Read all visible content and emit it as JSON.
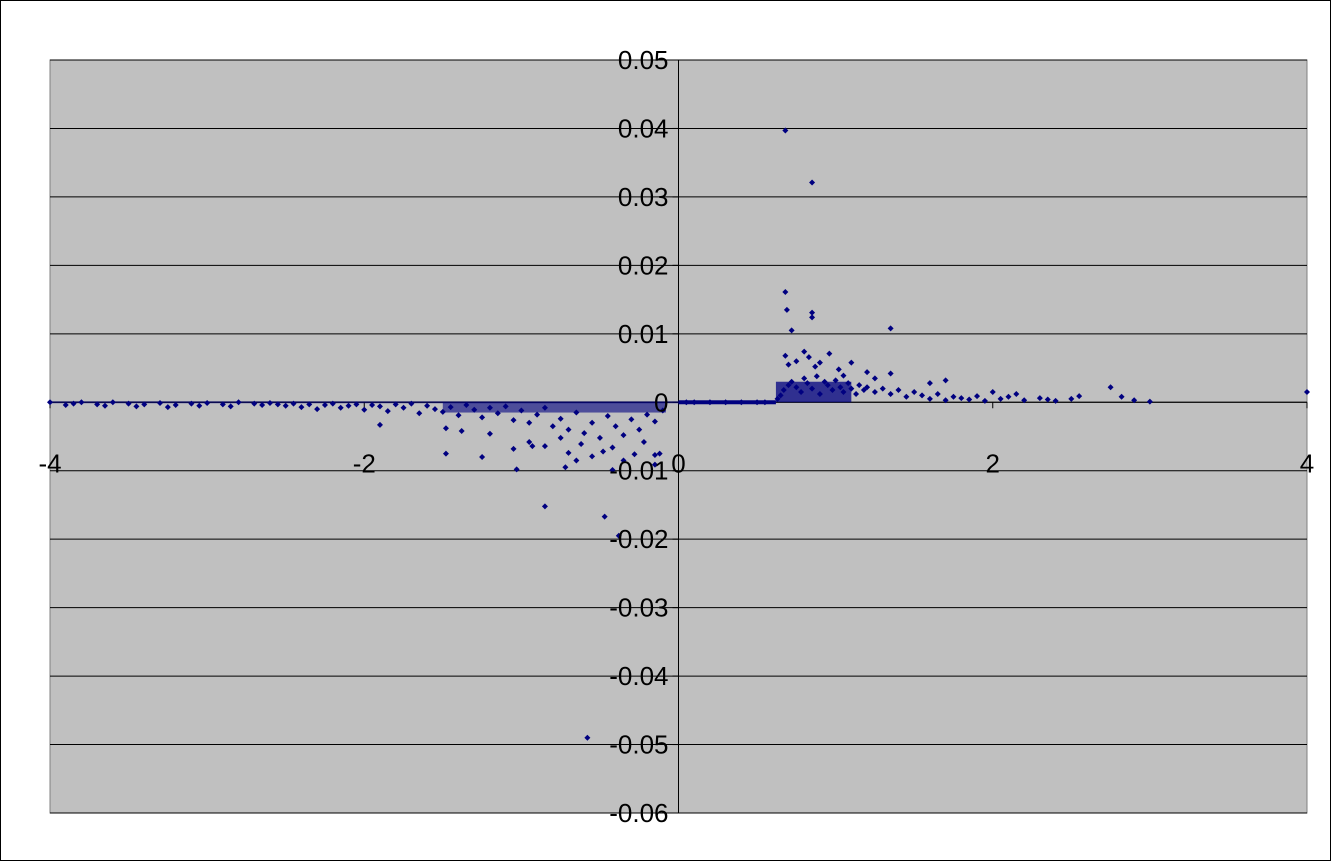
{
  "chart_data": {
    "type": "scatter",
    "title": "",
    "xlabel": "",
    "ylabel": "",
    "xlim": [
      -4,
      4
    ],
    "ylim": [
      -0.06,
      0.05
    ],
    "x_ticks": [
      -4,
      -2,
      0,
      2,
      4
    ],
    "x_tick_labels": [
      "-4",
      "-2",
      "0",
      "2",
      "4"
    ],
    "y_ticks": [
      0.05,
      0.04,
      0.03,
      0.02,
      0.01,
      0,
      -0.01,
      -0.02,
      -0.03,
      -0.04,
      -0.05,
      -0.06
    ],
    "y_tick_labels": [
      "0.05",
      "0.04",
      "0.03",
      "0.02",
      "0.01",
      "0",
      "-0.01",
      "-0.02",
      "-0.03",
      "-0.04",
      "-0.05",
      "-0.06"
    ],
    "grid": "horizontal major gridlines",
    "legend": "none",
    "colors": {
      "plot_area": "#c0c0c0",
      "marker": "#000080",
      "gridline": "#000000"
    },
    "series": [
      {
        "marker": "diamond",
        "points": [
          [
            -4.0,
            0.0
          ],
          [
            -3.9,
            -0.0004
          ],
          [
            -3.85,
            -0.0002
          ],
          [
            -3.8,
            0.0
          ],
          [
            -3.7,
            -0.0003
          ],
          [
            -3.65,
            -0.0005
          ],
          [
            -3.6,
            0.0
          ],
          [
            -3.5,
            -0.0002
          ],
          [
            -3.45,
            -0.0006
          ],
          [
            -3.4,
            -0.0003
          ],
          [
            -3.3,
            -0.0001
          ],
          [
            -3.25,
            -0.0007
          ],
          [
            -3.2,
            -0.0004
          ],
          [
            -3.1,
            -0.0002
          ],
          [
            -3.05,
            -0.0005
          ],
          [
            -3.0,
            -0.0001
          ],
          [
            -2.9,
            -0.0003
          ],
          [
            -2.85,
            -0.0006
          ],
          [
            -2.8,
            0.0
          ],
          [
            -2.7,
            -0.0002
          ],
          [
            -2.65,
            -0.0004
          ],
          [
            -2.6,
            -0.0001
          ],
          [
            -2.55,
            -0.0003
          ],
          [
            -2.5,
            -0.0005
          ],
          [
            -2.45,
            -0.0002
          ],
          [
            -2.4,
            -0.0007
          ],
          [
            -2.35,
            -0.0003
          ],
          [
            -2.3,
            -0.001
          ],
          [
            -2.25,
            -0.0004
          ],
          [
            -2.2,
            -0.0002
          ],
          [
            -2.15,
            -0.0008
          ],
          [
            -2.1,
            -0.0005
          ],
          [
            -2.05,
            -0.0003
          ],
          [
            -2.0,
            -0.0011
          ],
          [
            -1.95,
            -0.0004
          ],
          [
            -1.9,
            -0.0006
          ],
          [
            -1.85,
            -0.0013
          ],
          [
            -1.8,
            -0.0003
          ],
          [
            -1.75,
            -0.0008
          ],
          [
            -1.7,
            -0.0002
          ],
          [
            -1.65,
            -0.0016
          ],
          [
            -1.6,
            -0.0005
          ],
          [
            -1.55,
            -0.001
          ],
          [
            -1.5,
            -0.0014
          ],
          [
            -1.45,
            -0.0007
          ],
          [
            -1.4,
            -0.0019
          ],
          [
            -1.35,
            -0.0004
          ],
          [
            -1.3,
            -0.0011
          ],
          [
            -1.25,
            -0.0022
          ],
          [
            -1.2,
            -0.0008
          ],
          [
            -1.15,
            -0.0016
          ],
          [
            -1.1,
            -0.0006
          ],
          [
            -1.05,
            -0.0026
          ],
          [
            -1.0,
            -0.0012
          ],
          [
            -0.95,
            -0.003
          ],
          [
            -0.9,
            -0.0018
          ],
          [
            -0.85,
            -0.0008
          ],
          [
            -0.8,
            -0.0035
          ],
          [
            -0.75,
            -0.0024
          ],
          [
            -0.7,
            -0.004
          ],
          [
            -0.65,
            -0.0015
          ],
          [
            -0.6,
            -0.0045
          ],
          [
            -0.55,
            -0.003
          ],
          [
            -0.5,
            -0.0052
          ],
          [
            -0.45,
            -0.002
          ],
          [
            -0.4,
            -0.0035
          ],
          [
            -0.35,
            -0.0048
          ],
          [
            -0.3,
            -0.0025
          ],
          [
            -0.25,
            -0.004
          ],
          [
            -0.2,
            -0.0018
          ],
          [
            -0.15,
            -0.0028
          ],
          [
            -0.1,
            -0.0012
          ],
          [
            -1.48,
            -0.0038
          ],
          [
            -1.9,
            -0.0033
          ],
          [
            -1.38,
            -0.0042
          ],
          [
            -1.2,
            -0.0046
          ],
          [
            -1.05,
            -0.0068
          ],
          [
            -0.95,
            -0.0058
          ],
          [
            -0.85,
            -0.0064
          ],
          [
            -0.75,
            -0.0052
          ],
          [
            -0.7,
            -0.0074
          ],
          [
            -0.62,
            -0.0061
          ],
          [
            -0.55,
            -0.0079
          ],
          [
            -0.48,
            -0.0072
          ],
          [
            -0.42,
            -0.0066
          ],
          [
            -0.35,
            -0.0085
          ],
          [
            -0.28,
            -0.0076
          ],
          [
            -0.22,
            -0.0058
          ],
          [
            -0.15,
            -0.0091
          ],
          [
            -0.12,
            -0.0075
          ],
          [
            -1.48,
            -0.0075
          ],
          [
            -1.25,
            -0.008
          ],
          [
            -1.03,
            -0.0098
          ],
          [
            -0.93,
            -0.0064
          ],
          [
            -0.85,
            -0.0152
          ],
          [
            -0.72,
            -0.0095
          ],
          [
            -0.47,
            -0.0167
          ],
          [
            -0.38,
            -0.0195
          ],
          [
            -0.42,
            -0.0099
          ],
          [
            -0.15,
            -0.0077
          ],
          [
            -0.58,
            -0.049
          ],
          [
            -0.65,
            -0.0085
          ],
          [
            0.05,
            0.0
          ],
          [
            0.1,
            0.0
          ],
          [
            0.2,
            0.0
          ],
          [
            0.3,
            0.0
          ],
          [
            0.4,
            0.0
          ],
          [
            0.5,
            0.0
          ],
          [
            0.55,
            0.0
          ],
          [
            0.63,
            0.0005
          ],
          [
            0.65,
            0.001
          ],
          [
            0.67,
            0.0018
          ],
          [
            0.7,
            0.0025
          ],
          [
            0.72,
            0.003
          ],
          [
            0.75,
            0.0022
          ],
          [
            0.78,
            0.0015
          ],
          [
            0.8,
            0.0035
          ],
          [
            0.82,
            0.0028
          ],
          [
            0.85,
            0.002
          ],
          [
            0.88,
            0.0038
          ],
          [
            0.9,
            0.0012
          ],
          [
            0.93,
            0.003
          ],
          [
            0.95,
            0.0025
          ],
          [
            0.98,
            0.0018
          ],
          [
            1.0,
            0.0032
          ],
          [
            1.03,
            0.0022
          ],
          [
            1.05,
            0.0015
          ],
          [
            1.08,
            0.0028
          ],
          [
            1.1,
            0.002
          ],
          [
            1.13,
            0.0012
          ],
          [
            1.15,
            0.0025
          ],
          [
            1.18,
            0.0018
          ],
          [
            1.2,
            0.0022
          ],
          [
            1.25,
            0.0015
          ],
          [
            1.3,
            0.002
          ],
          [
            1.35,
            0.0012
          ],
          [
            1.4,
            0.0018
          ],
          [
            1.45,
            0.0008
          ],
          [
            1.5,
            0.0015
          ],
          [
            1.55,
            0.001
          ],
          [
            1.6,
            0.0005
          ],
          [
            1.65,
            0.0012
          ],
          [
            1.7,
            0.0003
          ],
          [
            1.75,
            0.0008
          ],
          [
            1.8,
            0.0006
          ],
          [
            1.85,
            0.0004
          ],
          [
            1.9,
            0.0009
          ],
          [
            1.95,
            0.0002
          ],
          [
            2.0,
            0.0015
          ],
          [
            2.05,
            0.0005
          ],
          [
            2.1,
            0.0008
          ],
          [
            2.15,
            0.0012
          ],
          [
            2.2,
            0.0003
          ],
          [
            2.3,
            0.0006
          ],
          [
            2.35,
            0.0004
          ],
          [
            2.4,
            0.0002
          ],
          [
            2.5,
            0.0005
          ],
          [
            2.55,
            0.0009
          ],
          [
            2.75,
            0.0022
          ],
          [
            2.82,
            0.0008
          ],
          [
            2.9,
            0.0003
          ],
          [
            3.0,
            0.0001
          ],
          [
            4.0,
            0.0015
          ],
          [
            0.68,
            0.0068
          ],
          [
            0.7,
            0.0055
          ],
          [
            0.75,
            0.006
          ],
          [
            0.8,
            0.0074
          ],
          [
            0.83,
            0.0066
          ],
          [
            0.87,
            0.0052
          ],
          [
            0.9,
            0.0058
          ],
          [
            0.96,
            0.0071
          ],
          [
            1.02,
            0.0048
          ],
          [
            1.05,
            0.0039
          ],
          [
            1.1,
            0.0058
          ],
          [
            1.2,
            0.0044
          ],
          [
            1.25,
            0.0035
          ],
          [
            1.35,
            0.0042
          ],
          [
            1.6,
            0.0028
          ],
          [
            1.7,
            0.0032
          ],
          [
            0.72,
            0.0105
          ],
          [
            0.69,
            0.0135
          ],
          [
            0.68,
            0.0161
          ],
          [
            0.85,
            0.0124
          ],
          [
            0.85,
            0.0131
          ],
          [
            1.35,
            0.0108
          ],
          [
            0.68,
            0.0397
          ],
          [
            0.85,
            0.0321
          ]
        ]
      }
    ]
  }
}
